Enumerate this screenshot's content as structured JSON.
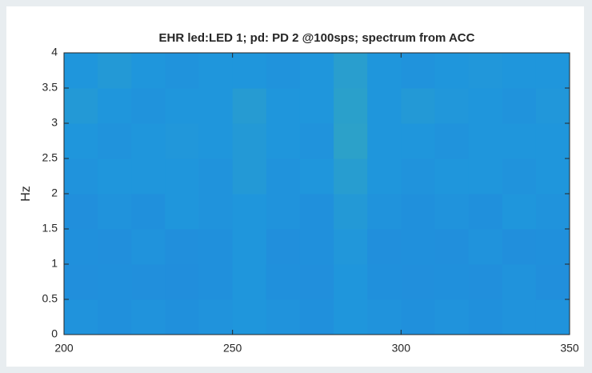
{
  "chart_data": {
    "type": "heatmap",
    "title": "EHR led:LED 1; pd: PD 2 @100sps; spectrum from ACC",
    "y_label": "Hz",
    "xlim": [
      200,
      350
    ],
    "xticks": [
      200,
      250,
      300,
      350
    ],
    "ylim": [
      0,
      4
    ],
    "yticks": [
      0,
      0.5,
      1,
      1.5,
      2,
      2.5,
      3,
      3.5,
      4
    ],
    "grid": false,
    "colormap": [
      "#3050e0",
      "#1f96dc",
      "#48b8a0"
    ],
    "z": [
      [
        0.48,
        0.46,
        0.48,
        0.46,
        0.48,
        0.5,
        0.48,
        0.46,
        0.5,
        0.48,
        0.46,
        0.48,
        0.46,
        0.48,
        0.48
      ],
      [
        0.45,
        0.46,
        0.45,
        0.44,
        0.46,
        0.5,
        0.46,
        0.45,
        0.5,
        0.46,
        0.45,
        0.46,
        0.45,
        0.48,
        0.45
      ],
      [
        0.46,
        0.45,
        0.48,
        0.45,
        0.46,
        0.5,
        0.45,
        0.46,
        0.52,
        0.45,
        0.46,
        0.45,
        0.48,
        0.45,
        0.46
      ],
      [
        0.45,
        0.48,
        0.46,
        0.5,
        0.48,
        0.5,
        0.48,
        0.46,
        0.55,
        0.48,
        0.46,
        0.48,
        0.46,
        0.5,
        0.48
      ],
      [
        0.48,
        0.5,
        0.5,
        0.5,
        0.48,
        0.55,
        0.48,
        0.5,
        0.6,
        0.5,
        0.48,
        0.5,
        0.5,
        0.48,
        0.5
      ],
      [
        0.5,
        0.48,
        0.5,
        0.52,
        0.5,
        0.55,
        0.5,
        0.48,
        0.66,
        0.5,
        0.5,
        0.48,
        0.5,
        0.5,
        0.5
      ],
      [
        0.55,
        0.5,
        0.48,
        0.5,
        0.5,
        0.58,
        0.5,
        0.5,
        0.64,
        0.5,
        0.55,
        0.52,
        0.5,
        0.48,
        0.52
      ],
      [
        0.5,
        0.55,
        0.5,
        0.48,
        0.5,
        0.5,
        0.48,
        0.5,
        0.62,
        0.5,
        0.48,
        0.5,
        0.52,
        0.5,
        0.5
      ]
    ]
  }
}
